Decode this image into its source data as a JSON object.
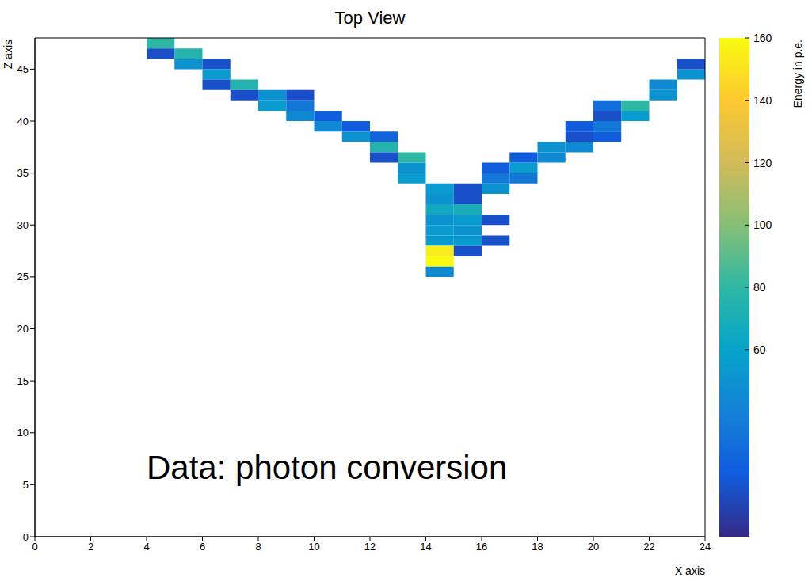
{
  "chart_data": {
    "type": "heatmap",
    "title": "Top View",
    "x_label": "X axis",
    "y_label": "Z axis",
    "annotation": "Data: photon conversion",
    "xlim": [
      0,
      24
    ],
    "xticks": [
      0,
      2,
      4,
      6,
      8,
      10,
      12,
      14,
      16,
      18,
      20,
      22,
      24
    ],
    "ylim": [
      0,
      48
    ],
    "yticks": [
      0,
      5,
      10,
      15,
      20,
      25,
      30,
      35,
      40,
      45
    ],
    "cell_size": [
      1,
      1
    ],
    "cells": [
      [
        4,
        47,
        80
      ],
      [
        4,
        46,
        15
      ],
      [
        5,
        46,
        75
      ],
      [
        5,
        45,
        50
      ],
      [
        6,
        45,
        15
      ],
      [
        6,
        44,
        55
      ],
      [
        6,
        43,
        15
      ],
      [
        7,
        43,
        75
      ],
      [
        7,
        42,
        15
      ],
      [
        8,
        42,
        50
      ],
      [
        9,
        42,
        15
      ],
      [
        8,
        41,
        55
      ],
      [
        9,
        41,
        35
      ],
      [
        9,
        40,
        45
      ],
      [
        10,
        40,
        20
      ],
      [
        10,
        39,
        45
      ],
      [
        11,
        39,
        20
      ],
      [
        11,
        38,
        50
      ],
      [
        12,
        38,
        25
      ],
      [
        12,
        37,
        75
      ],
      [
        12,
        36,
        15
      ],
      [
        13,
        36,
        80
      ],
      [
        13,
        35,
        50
      ],
      [
        13,
        34,
        55
      ],
      [
        14,
        33,
        55
      ],
      [
        14,
        32,
        50
      ],
      [
        15,
        32,
        15
      ],
      [
        14,
        31,
        65
      ],
      [
        15,
        31,
        70
      ],
      [
        14,
        30,
        50
      ],
      [
        15,
        30,
        55
      ],
      [
        16,
        30,
        15
      ],
      [
        14,
        29,
        55
      ],
      [
        15,
        29,
        50
      ],
      [
        14,
        28,
        55
      ],
      [
        15,
        28,
        55
      ],
      [
        16,
        28,
        15
      ],
      [
        14,
        27,
        155
      ],
      [
        15,
        27,
        15
      ],
      [
        14,
        26,
        160
      ],
      [
        14,
        25,
        45
      ],
      [
        15,
        33,
        15
      ],
      [
        16,
        33,
        50
      ],
      [
        16,
        34,
        35
      ],
      [
        17,
        34,
        35
      ],
      [
        16,
        35,
        20
      ],
      [
        17,
        35,
        55
      ],
      [
        17,
        36,
        20
      ],
      [
        18,
        36,
        45
      ],
      [
        18,
        37,
        50
      ],
      [
        19,
        37,
        45
      ],
      [
        19,
        38,
        15
      ],
      [
        20,
        38,
        20
      ],
      [
        19,
        39,
        20
      ],
      [
        20,
        39,
        35
      ],
      [
        20,
        40,
        15
      ],
      [
        21,
        40,
        55
      ],
      [
        20,
        41,
        30
      ],
      [
        21,
        41,
        80
      ],
      [
        22,
        42,
        50
      ],
      [
        22,
        43,
        45
      ],
      [
        23,
        44,
        50
      ],
      [
        23,
        45,
        15
      ]
    ],
    "colorbar": {
      "label": "Energy in p.e.",
      "range": [
        0,
        160
      ],
      "ticks": [
        60,
        80,
        100,
        120,
        140,
        160
      ]
    }
  }
}
